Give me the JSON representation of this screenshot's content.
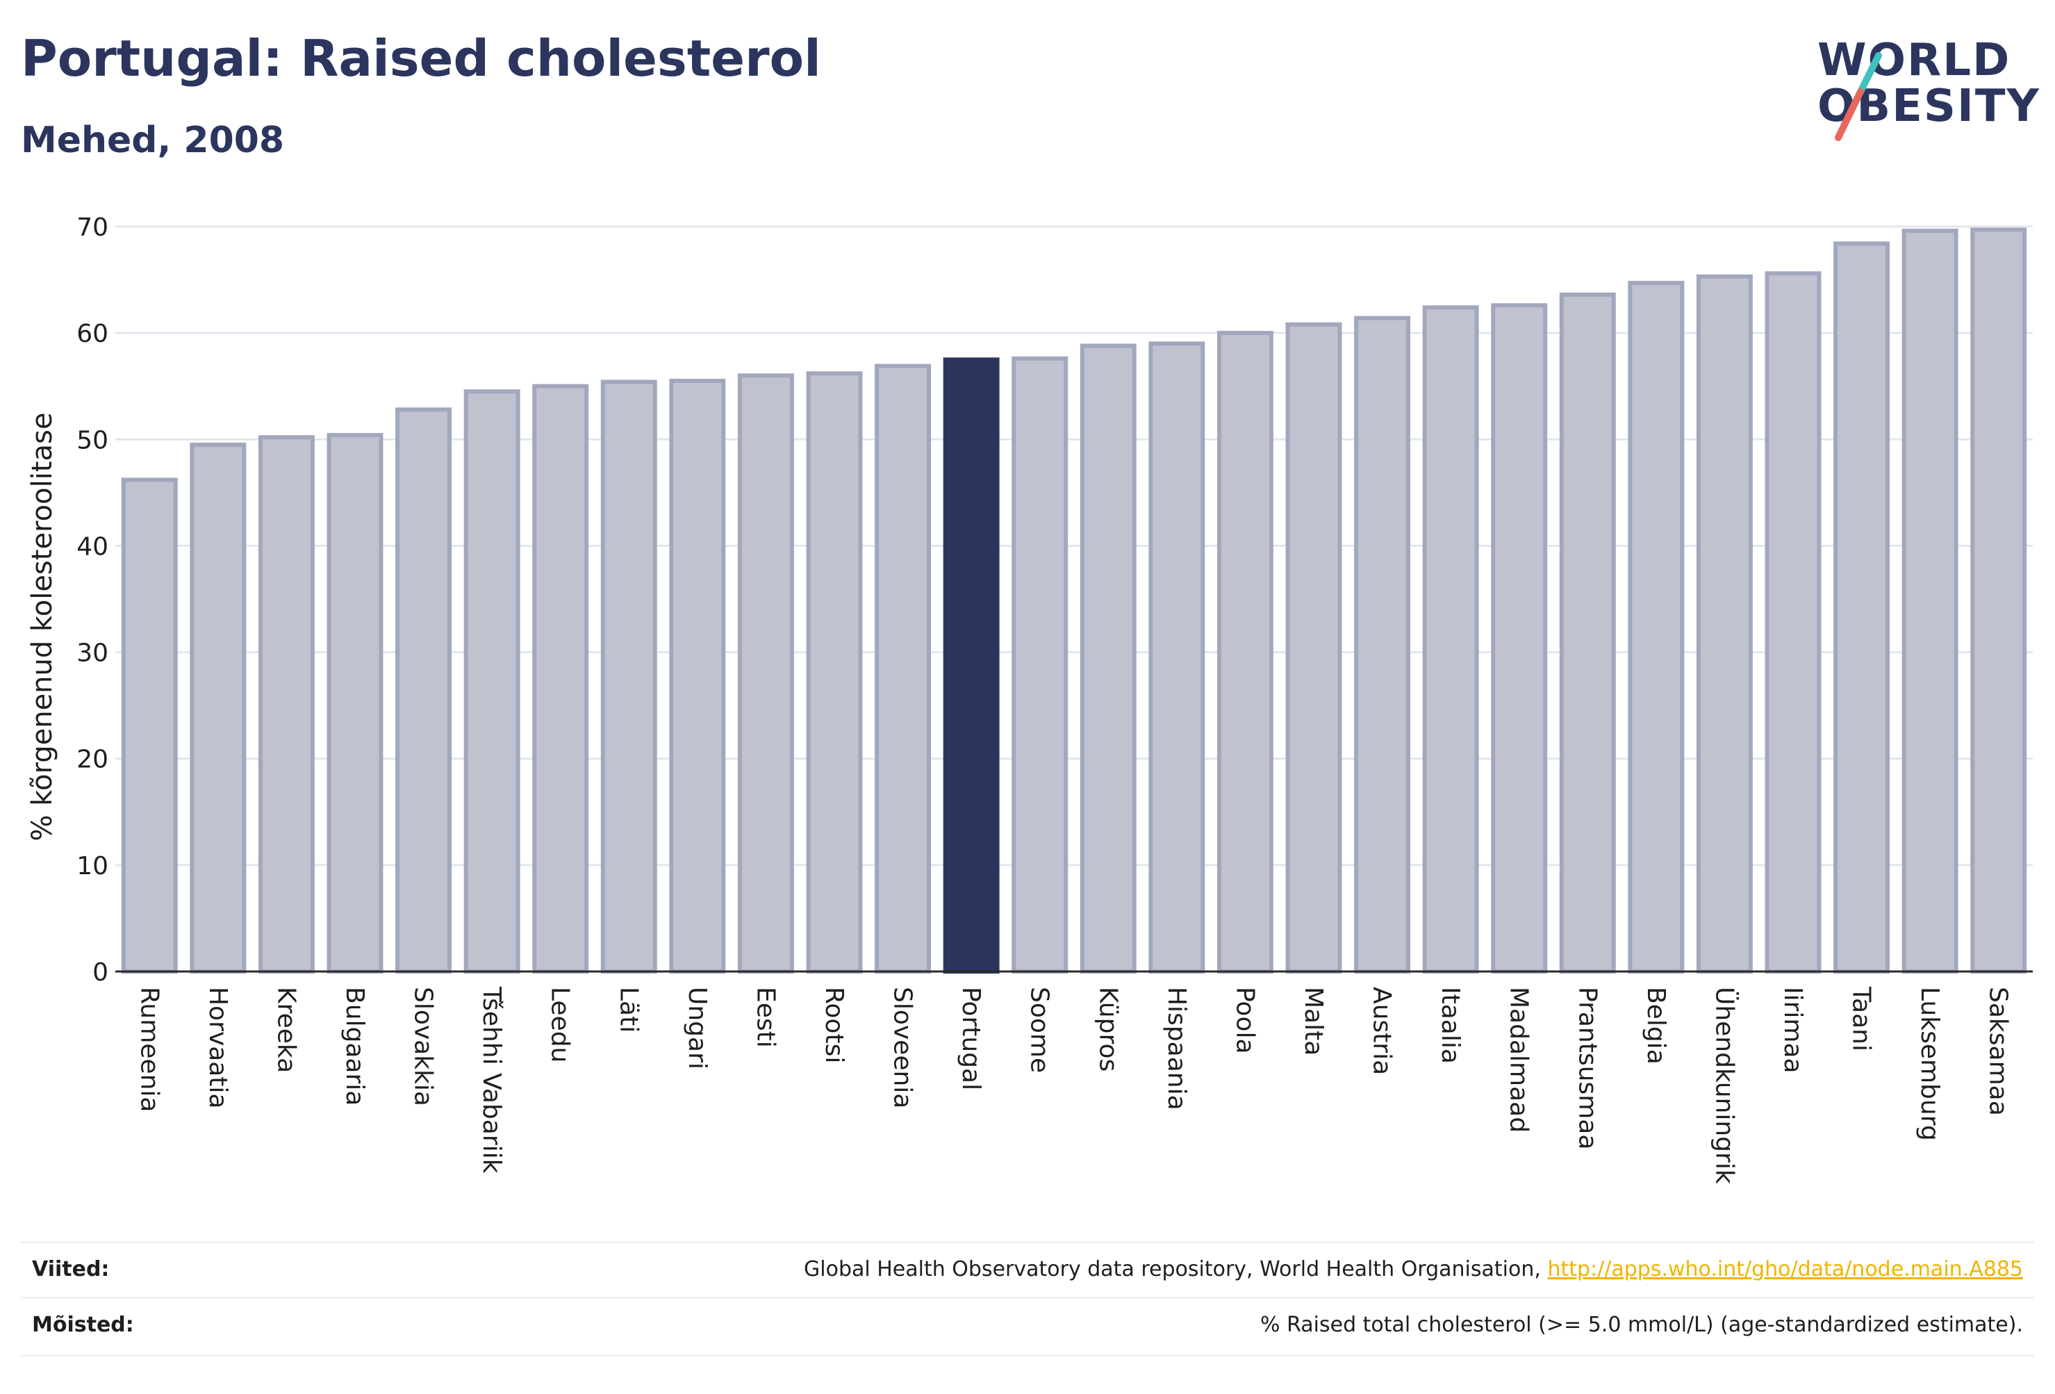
{
  "header": {
    "title": "Portugal: Raised cholesterol",
    "subtitle": "Mehed, 2008"
  },
  "logo": {
    "line1": "WORLD",
    "line2": "OBESITY",
    "colors": {
      "text": "#2b355e",
      "slash_teal": "#3fc1c0",
      "slash_red": "#e8665c"
    }
  },
  "chart_data": {
    "type": "bar",
    "ylabel": "% kõrgenenud kolesteroolitase",
    "ylim": [
      0,
      70
    ],
    "yticks": [
      0,
      10,
      20,
      30,
      40,
      50,
      60,
      70
    ],
    "grid": true,
    "highlight": "Portugal",
    "colors": {
      "bar": "#c0c3cf",
      "bar_border": "#a1a7bd",
      "highlight": "#2b355e"
    },
    "categories": [
      "Rumeenia",
      "Horvaatia",
      "Kreeka",
      "Bulgaaria",
      "Slovakkia",
      "Tšehhi Vabariik",
      "Leedu",
      "Läti",
      "Ungari",
      "Eesti",
      "Rootsi",
      "Sloveenia",
      "Portugal",
      "Soome",
      "Küpros",
      "Hispaania",
      "Poola",
      "Malta",
      "Austria",
      "Itaalia",
      "Madalmaad",
      "Prantsusmaa",
      "Belgia",
      "Ühendkuningrik",
      "Iirimaa",
      "Taani",
      "Luksemburg",
      "Saksamaa"
    ],
    "values": [
      46.2,
      49.5,
      50.2,
      50.4,
      52.8,
      54.5,
      55.0,
      55.4,
      55.5,
      56.0,
      56.2,
      56.9,
      57.5,
      57.6,
      58.8,
      59.0,
      60.0,
      60.8,
      61.4,
      62.4,
      62.6,
      63.6,
      64.7,
      65.3,
      65.6,
      68.4,
      69.6,
      69.7
    ]
  },
  "footer": {
    "references_label": "Viited:",
    "references_text": "Global Health Observatory data repository, World Health Organisation, ",
    "references_link": "http://apps.who.int/gho/data/node.main.A885",
    "definitions_label": "Mõisted:",
    "definitions_text": "% Raised total cholesterol (>= 5.0 mmol/L) (age-standardized estimate)."
  }
}
